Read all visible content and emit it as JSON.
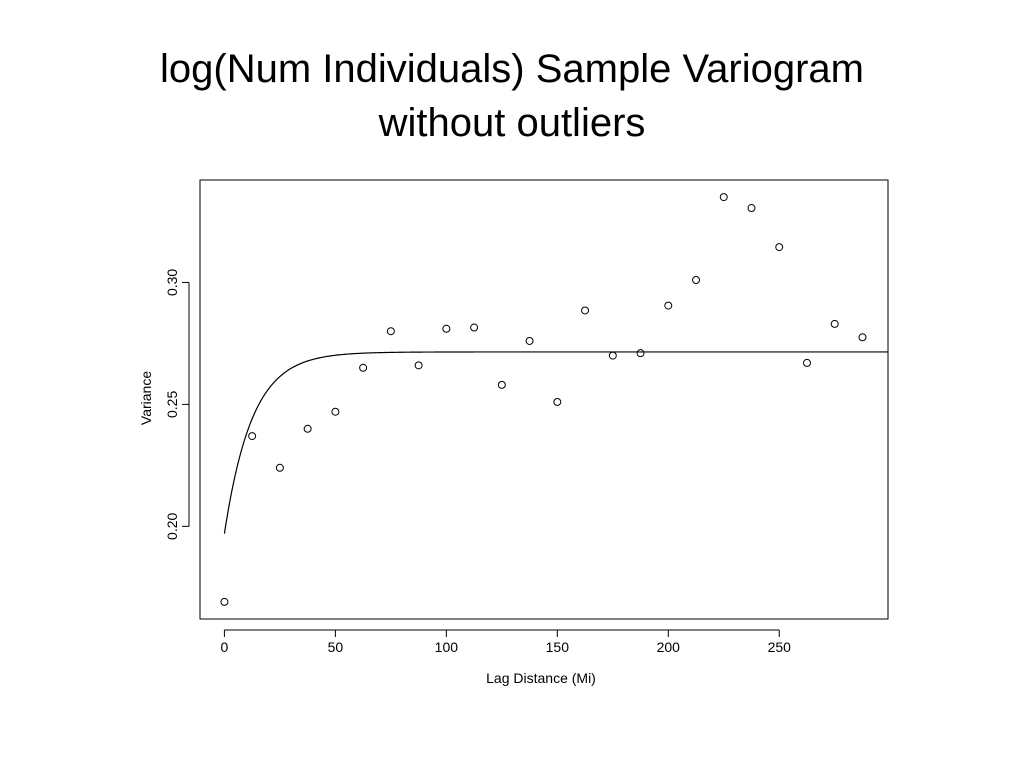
{
  "slide": {
    "title_line1": "log(Num Individuals) Sample Variogram",
    "title_line2": "without outliers"
  },
  "chart_data": {
    "type": "scatter",
    "title": "log(Num Individuals) Sample Variogram without outliers",
    "xlabel": "Lag Distance (Mi)",
    "ylabel": "Variance",
    "xlim": [
      -11,
      299
    ],
    "ylim": [
      0.162,
      0.342
    ],
    "xticks": [
      0,
      50,
      100,
      150,
      200,
      250
    ],
    "xtick_labels": [
      "0",
      "50",
      "100",
      "150",
      "200",
      "250"
    ],
    "yticks": [
      0.2,
      0.25,
      0.3
    ],
    "ytick_labels": [
      "0.20",
      "0.25",
      "0.30"
    ],
    "grid": false,
    "series": [
      {
        "marker": "open-circle",
        "x": [
          0,
          12.5,
          25,
          37.5,
          50,
          62.5,
          75,
          87.5,
          100,
          112.5,
          125,
          137.5,
          150,
          162.5,
          175,
          187.5,
          200,
          212.5,
          225,
          237.5,
          250,
          262.5,
          275,
          287.5
        ],
        "y": [
          0.169,
          0.237,
          0.224,
          0.24,
          0.247,
          0.265,
          0.28,
          0.266,
          0.281,
          0.2815,
          0.258,
          0.276,
          0.251,
          0.2885,
          0.27,
          0.271,
          0.2905,
          0.301,
          0.335,
          0.3305,
          0.3145,
          0.267,
          0.283,
          0.2775
        ]
      }
    ],
    "fitted_model": {
      "type": "exponential",
      "nugget": 0.197,
      "sill": 0.2715,
      "range": 12.5,
      "x_start": 0,
      "x_end": 299
    },
    "colors": {
      "points": "#000000",
      "line": "#000000",
      "axes": "#000000"
    }
  }
}
